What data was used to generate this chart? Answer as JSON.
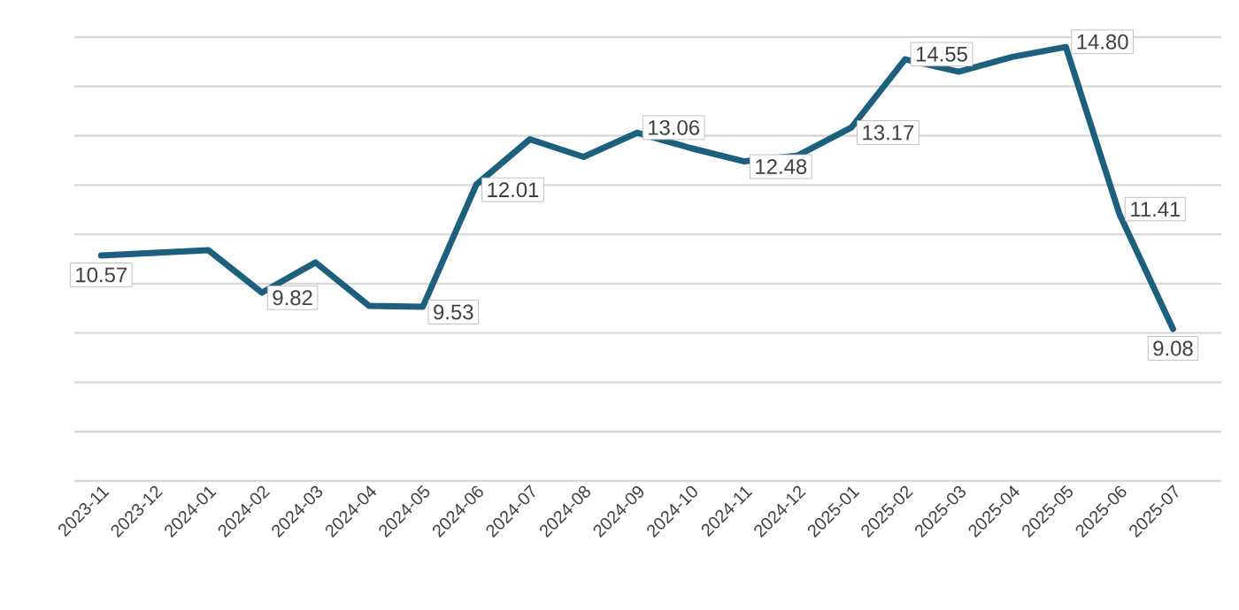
{
  "chart_data": {
    "type": "line",
    "categories": [
      "2023-11",
      "2023-12",
      "2024-01",
      "2024-02",
      "2024-03",
      "2024-04",
      "2024-05",
      "2024-06",
      "2024-07",
      "2024-08",
      "2024-09",
      "2024-10",
      "2024-11",
      "2024-12",
      "2025-01",
      "2025-02",
      "2025-03",
      "2025-04",
      "2025-05",
      "2025-06",
      "2025-07"
    ],
    "series": [
      {
        "color": "#1d5f7e",
        "values": [
          10.57,
          null,
          10.68,
          9.82,
          10.43,
          9.55,
          9.53,
          12.01,
          12.93,
          12.57,
          13.06,
          12.75,
          12.48,
          12.6,
          13.17,
          14.55,
          14.3,
          14.6,
          14.8,
          11.41,
          9.08
        ],
        "value_labels": [
          "10.57",
          null,
          null,
          "9.82",
          null,
          null,
          "9.53",
          "12.01",
          null,
          null,
          "13.06",
          null,
          "12.48",
          null,
          "13.17",
          "14.55",
          null,
          null,
          "14.80",
          "11.41",
          "9.08"
        ]
      }
    ],
    "ylim": [
      6,
      15
    ],
    "yticks": [
      {
        "value": 6,
        "label": null
      },
      {
        "value": 7,
        "label": null
      },
      {
        "value": 8,
        "label": null
      },
      {
        "value": 9,
        "label": null
      },
      {
        "value": 10,
        "label": null
      },
      {
        "value": 11,
        "label": null
      },
      {
        "value": 12,
        "label": null
      },
      {
        "value": 13,
        "label": null
      },
      {
        "value": 14,
        "label": null
      },
      {
        "value": 15,
        "label": null
      }
    ],
    "grid": "y",
    "marker": "none",
    "line_style": "solid"
  }
}
